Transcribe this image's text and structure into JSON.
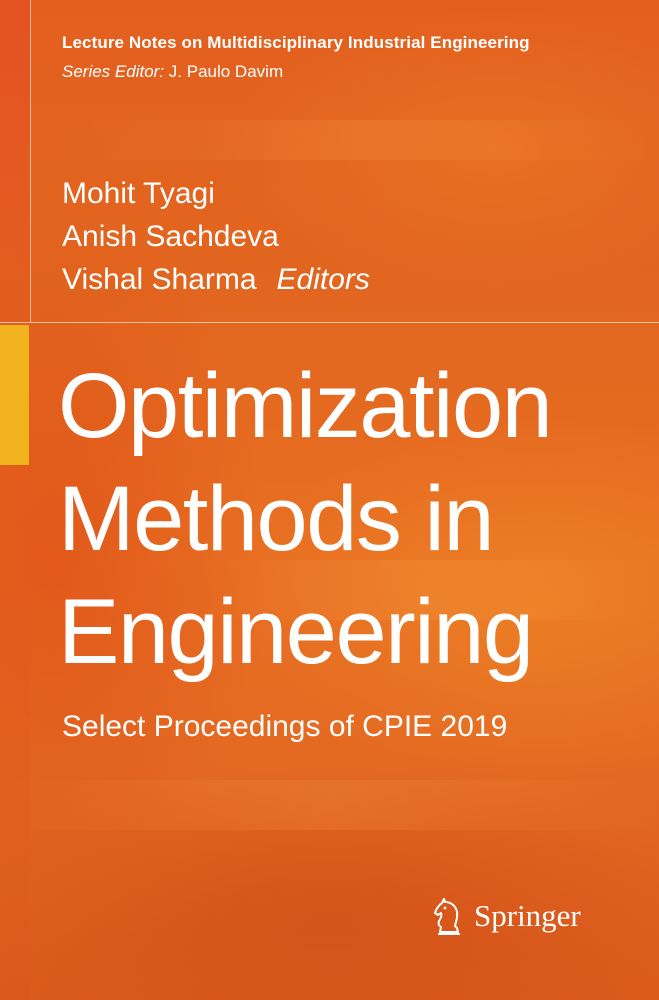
{
  "series": {
    "title": "Lecture Notes on Multidisciplinary Industrial Engineering",
    "editor_label": "Series Editor:",
    "editor_name": "J. Paulo Davim"
  },
  "editors": {
    "names": [
      "Mohit Tyagi",
      "Anish Sachdeva",
      "Vishal Sharma"
    ],
    "role": "Editors"
  },
  "book": {
    "title_lines": [
      "Optimization",
      "Methods in",
      "Engineering"
    ],
    "subtitle": "Select Proceedings of CPIE 2019"
  },
  "publisher": {
    "name": "Springer",
    "logo_icon": "knight-chess-piece-icon"
  },
  "colors": {
    "background": "#e2661f",
    "accent_bar": "#f2b21e",
    "text": "#ffffff"
  }
}
